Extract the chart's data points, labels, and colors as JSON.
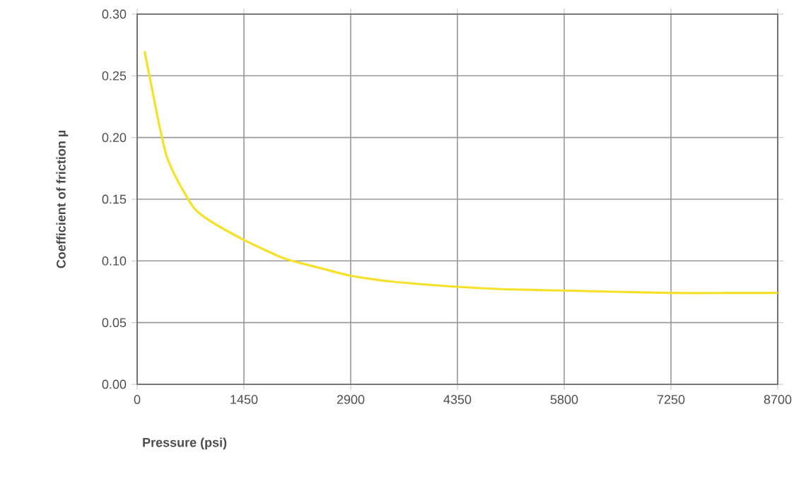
{
  "chart_data": {
    "type": "line",
    "xlabel": "Pressure (psi)",
    "ylabel": "Coefficient of friction µ",
    "x": [
      100,
      200,
      300,
      400,
      550,
      770,
      1000,
      1450,
      2000,
      2500,
      2900,
      3500,
      4350,
      5000,
      5800,
      6500,
      7250,
      8000,
      8700
    ],
    "series": [
      {
        "color": "#f5e12a",
        "values": [
          0.27,
          0.24,
          0.21,
          0.185,
          0.165,
          0.143,
          0.132,
          0.117,
          0.102,
          0.094,
          0.088,
          0.083,
          0.079,
          0.077,
          0.076,
          0.075,
          0.074,
          0.074,
          0.074
        ]
      }
    ],
    "xlim": [
      0,
      8700
    ],
    "ylim": [
      0,
      0.3
    ],
    "xticks": [
      0,
      1450,
      2900,
      4350,
      5800,
      7250,
      8700
    ],
    "yticks": [
      {
        "value": 0,
        "label": "0.00"
      },
      {
        "value": 0.05,
        "label": "0.05"
      },
      {
        "value": 0.1,
        "label": "0.10"
      },
      {
        "value": 0.15,
        "label": "0.15"
      },
      {
        "value": 0.2,
        "label": "0.20"
      },
      {
        "value": 0.25,
        "label": "0.25"
      },
      {
        "value": 0.3,
        "label": "0.30"
      }
    ],
    "grid": true,
    "marker": "none",
    "line_style": "solid"
  }
}
